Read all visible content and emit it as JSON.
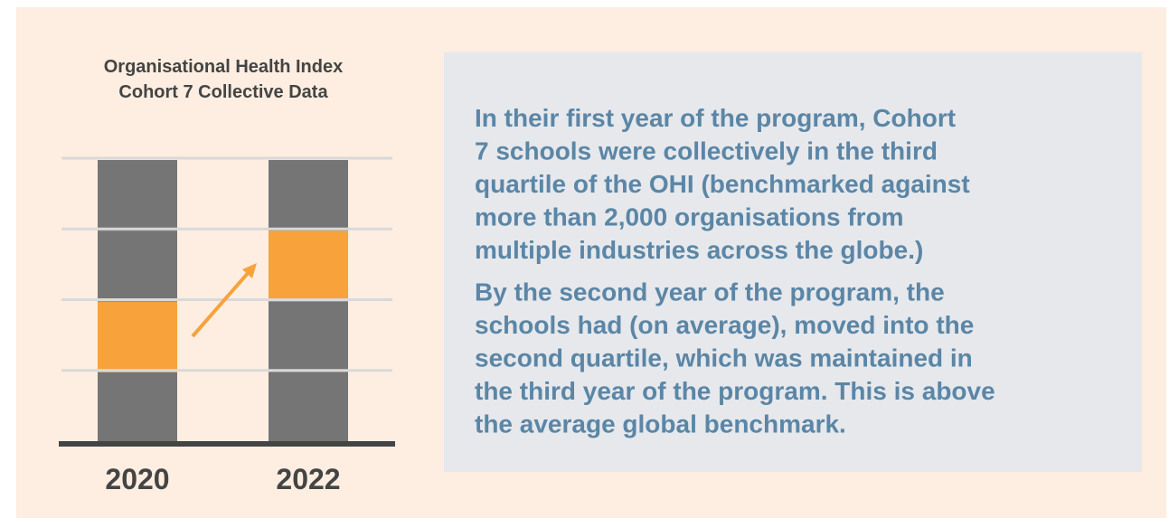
{
  "chart_data": {
    "type": "quartile-bar",
    "title": [
      "Organisational Health Index",
      "Cohort 7 Collective Data"
    ],
    "categories": [
      "2020",
      "2022"
    ],
    "quartiles": 4,
    "quartile": [
      3,
      2
    ],
    "color": "#757575",
    "highlight_color": "#f7a23b",
    "grid": true
  },
  "text": {
    "paragraphs": [
      [
        "In their first year of the program, Cohort",
        "7 schools were collectively in the third",
        "quartile of the OHI (benchmarked against",
        "more than 2,000 organisations from",
        "multiple industries across the globe.)"
      ],
      [
        "By the second year of the program, the",
        "schools had (on average), moved into the",
        "second quartile, which was maintained in",
        "the third year of the program. This is above",
        "the average global benchmark."
      ]
    ]
  }
}
